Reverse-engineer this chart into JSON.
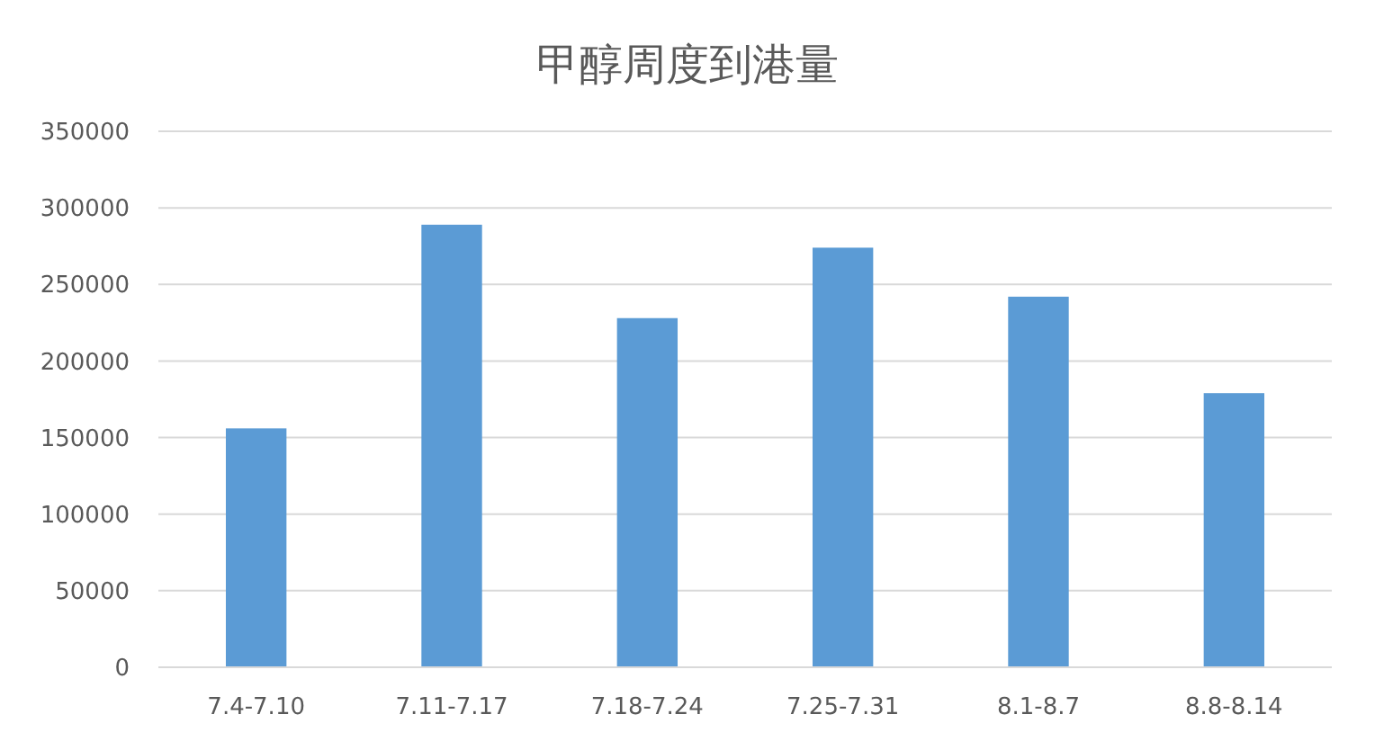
{
  "chart_data": {
    "type": "bar",
    "title": "甲醇周度到港量",
    "categories": [
      "7.4-7.10",
      "7.11-7.17",
      "7.18-7.24",
      "7.25-7.31",
      "8.1-8.7",
      "8.8-8.14"
    ],
    "values": [
      156000,
      289000,
      228000,
      274000,
      242000,
      179000
    ],
    "color": "#5b9bd5",
    "ylim": [
      0,
      350000
    ],
    "yticks": [
      0,
      50000,
      100000,
      150000,
      200000,
      250000,
      300000,
      350000
    ],
    "grid": "y"
  }
}
